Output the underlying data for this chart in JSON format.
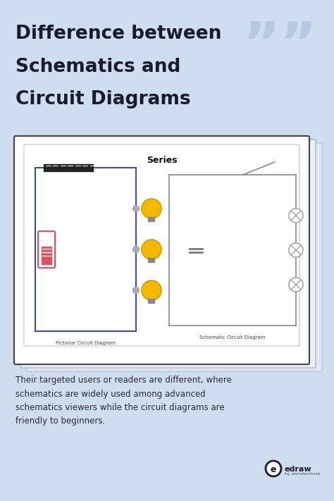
{
  "bg_color": "#cfddf0",
  "title_text_line1": "Difference between",
  "title_text_line2": "Schematics and",
  "title_text_line3": "Circuit Diagrams",
  "title_color": "#1a1a2e",
  "title_fontsize": 19,
  "quote_color": "#b8c8de",
  "body_text": "Their targeted users or readers are different, where\nschematics are widely used among advanced\nschematics viewers while the circuit diagrams are\nfriendly to beginners.",
  "body_color": "#2a2a3a",
  "body_fontsize": 8.5,
  "diagram_title": "Series",
  "diagram_title_fontsize": 9,
  "card_bg": "#ffffff",
  "outer_card_border": "#444444",
  "inner_card_border": "#bbbbbb",
  "back_card_color": "#e8eef8",
  "pictorial_label": "Pictorial Circuit Diagram",
  "schematic_label": "Schematic Circuit Diagram",
  "label_fontsize": 5,
  "battery_color_border": "#e05060",
  "battery_color_fill": "#e05060",
  "bulb_color": "#f5b800",
  "bulb_outline": "#d4a000",
  "resistor_dark": "#222222",
  "wire_color_left": "#3344aa",
  "schematic_wire_color": "#888888",
  "capacitor_color": "#777777",
  "edraw_color": "#1a1a2e",
  "connector_color": "#aaaaaa"
}
